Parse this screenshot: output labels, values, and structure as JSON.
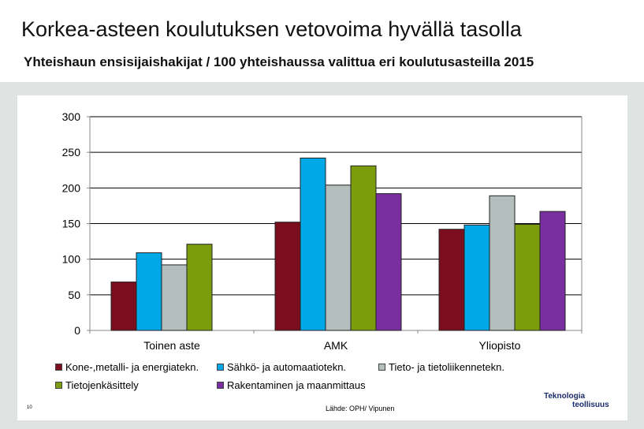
{
  "header": {
    "title": "Korkea-asteen koulutuksen vetovoima hyvällä tasolla",
    "subtitle": "Yhteishaun ensisijaishakijat / 100 yhteishaussa valittua eri koulutusasteilla 2015"
  },
  "chart_data": {
    "type": "bar",
    "title": "Yhteishaun ensisijaishakijat / 100 yhteishaussa valittua eri koulutusasteilla 2015",
    "categories": [
      "Toinen aste",
      "AMK",
      "Yliopisto"
    ],
    "series": [
      {
        "name": "Kone-,metalli- ja energiatekn.",
        "color": "#7b0d1e",
        "values": [
          68,
          152,
          142
        ]
      },
      {
        "name": "Sähkö- ja automaatiotekn.",
        "color": "#00a8e8",
        "values": [
          109,
          242,
          148
        ]
      },
      {
        "name": "Tieto- ja tietoliikennetekn.",
        "color": "#b4bebc",
        "values": [
          92,
          204,
          189
        ]
      },
      {
        "name": "Tietojenkäsittely",
        "color": "#7b9c0c",
        "values": [
          121,
          231,
          149
        ]
      },
      {
        "name": "Rakentaminen ja maanmittaus",
        "color": "#7a2fa0",
        "values": [
          null,
          192,
          167
        ]
      }
    ],
    "ylim": [
      0,
      300
    ],
    "yticks": [
      "0",
      "50",
      "100",
      "150",
      "200",
      "250",
      "300"
    ],
    "xlabel": "",
    "ylabel": "",
    "grid": true,
    "legend": "bottom"
  },
  "footer": {
    "source": "Lähde: OPH/ Vipunen",
    "page_number": "10",
    "logo_line1": "Teknologia",
    "logo_line2": "teollisuus"
  }
}
